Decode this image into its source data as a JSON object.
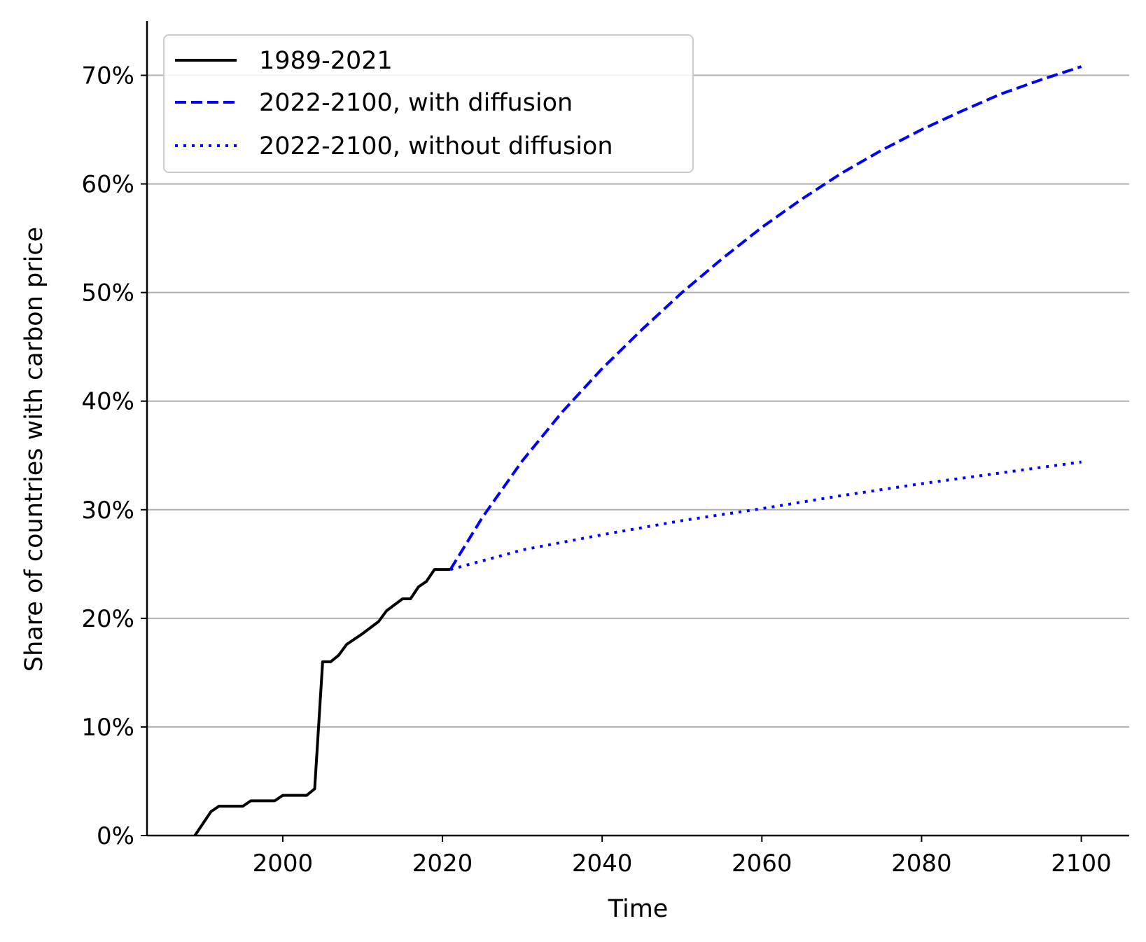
{
  "chart_data": {
    "type": "line",
    "title": "",
    "xlabel": "Time",
    "ylabel": "Share of countries with carbon price",
    "xlim": [
      1983,
      2106
    ],
    "ylim": [
      0,
      75
    ],
    "x_ticks": [
      2000,
      2020,
      2040,
      2060,
      2080,
      2100
    ],
    "x_tick_labels": [
      "2000",
      "2020",
      "2040",
      "2060",
      "2080",
      "2100"
    ],
    "y_ticks": [
      0,
      10,
      20,
      30,
      40,
      50,
      60,
      70
    ],
    "y_tick_labels": [
      "0%",
      "10%",
      "20%",
      "30%",
      "40%",
      "50%",
      "60%",
      "70%"
    ],
    "grid": "horizontal",
    "legend_position": "top-left",
    "series": [
      {
        "name": "1989-2021",
        "color": "#000000",
        "style": "solid",
        "x": [
          1989,
          1991,
          1992,
          1995,
          1996,
          1999,
          2000,
          2003,
          2004,
          2005,
          2006,
          2007,
          2008,
          2010,
          2012,
          2013,
          2015,
          2016,
          2017,
          2018,
          2019,
          2020,
          2021
        ],
        "y": [
          0,
          2.2,
          2.7,
          2.7,
          3.2,
          3.2,
          3.7,
          3.7,
          4.3,
          16.0,
          16.0,
          16.6,
          17.6,
          18.6,
          19.7,
          20.7,
          21.8,
          21.8,
          22.9,
          23.4,
          24.5,
          24.5,
          24.5
        ]
      },
      {
        "name": "2022-2100, with diffusion",
        "color": "#0000ff",
        "style": "dashed",
        "x": [
          2021,
          2025,
          2030,
          2035,
          2040,
          2045,
          2050,
          2055,
          2060,
          2065,
          2070,
          2075,
          2080,
          2085,
          2090,
          2095,
          2100
        ],
        "y": [
          24.5,
          29.3,
          34.5,
          39.0,
          43.0,
          46.6,
          50.0,
          53.1,
          56.0,
          58.6,
          61.0,
          63.1,
          65.0,
          66.7,
          68.3,
          69.6,
          70.8
        ]
      },
      {
        "name": "2022-2100, without diffusion",
        "color": "#0000ff",
        "style": "dotted",
        "x": [
          2021,
          2030,
          2040,
          2050,
          2060,
          2070,
          2080,
          2090,
          2100
        ],
        "y": [
          24.5,
          26.3,
          27.7,
          29.0,
          30.1,
          31.3,
          32.4,
          33.4,
          34.4
        ]
      }
    ]
  }
}
